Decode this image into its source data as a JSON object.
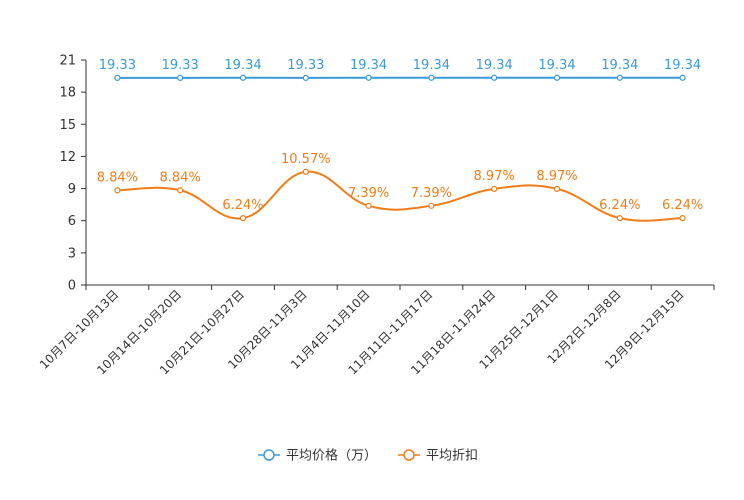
{
  "chart_data": {
    "type": "line",
    "categories": [
      "10月7日-10月13日",
      "10月14日-10月20日",
      "10月21日-10月27日",
      "10月28日-11月3日",
      "11月4日-11月10日",
      "11月11日-11月17日",
      "11月18日-11月24日",
      "11月25日-12月1日",
      "12月2日-12月8日",
      "12月9日-12月15日"
    ],
    "ylim": [
      0,
      21
    ],
    "yticks": [
      0,
      3,
      6,
      9,
      12,
      15,
      18,
      21
    ],
    "series": [
      {
        "name": "平均价格（万）",
        "color": "#3a9bd5",
        "values": [
          19.33,
          19.33,
          19.34,
          19.33,
          19.34,
          19.34,
          19.34,
          19.34,
          19.34,
          19.34
        ],
        "labels": [
          "19.33",
          "19.33",
          "19.34",
          "19.33",
          "19.34",
          "19.34",
          "19.34",
          "19.34",
          "19.34",
          "19.34"
        ]
      },
      {
        "name": "平均折扣",
        "color": "#f07d1a",
        "values": [
          8.84,
          8.84,
          6.24,
          10.57,
          7.39,
          7.39,
          8.97,
          8.97,
          6.24,
          6.24
        ],
        "labels": [
          "8.84%",
          "8.84%",
          "6.24%",
          "10.57%",
          "7.39%",
          "7.39%",
          "8.97%",
          "8.97%",
          "6.24%",
          "6.24%"
        ]
      }
    ],
    "legend_position": "bottom-center"
  }
}
